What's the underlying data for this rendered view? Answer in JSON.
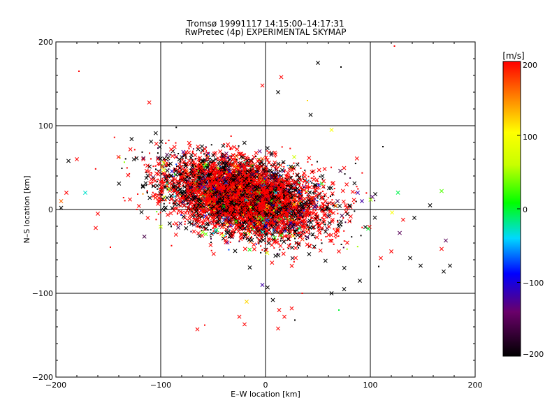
{
  "chart_data": {
    "type": "scatter",
    "title_line1": "Tromsø 19991117 14:15:00–14:17:31",
    "title_line2": "RwPretec (4p) EXPERIMENTAL SKYMAP",
    "xlabel": "E–W location [km]",
    "ylabel": "N–S location [km]",
    "xlim": [
      -200,
      200
    ],
    "ylim": [
      -200,
      200
    ],
    "xticks": [
      -200,
      -100,
      0,
      100,
      200
    ],
    "yticks": [
      -200,
      -100,
      0,
      100,
      200
    ],
    "xtick_labels": [
      "−200",
      "−100",
      "0",
      "100",
      "200"
    ],
    "ytick_labels": [
      "−200",
      "−100",
      "0",
      "100",
      "200"
    ],
    "grid": true,
    "colorbar": {
      "label": "[m/s]",
      "min": -200,
      "max": 200,
      "ticks": [
        200,
        100,
        0,
        -100,
        -200
      ],
      "tick_labels": [
        "200",
        "100",
        "0",
        "−100",
        "−200"
      ],
      "colormap": "black-purple-blue-cyan-green-yellow-red"
    },
    "markers": [
      "cross",
      "dot"
    ],
    "cluster": {
      "center_x": -20,
      "center_y": 15,
      "spread_x": 70,
      "spread_y": 30,
      "approx_points": 6000,
      "dominant_velocity": 200
    },
    "outliers": [
      {
        "x": -178,
        "y": 165,
        "v": 200,
        "m": "dot"
      },
      {
        "x": 123,
        "y": 195,
        "v": 200,
        "m": "dot"
      },
      {
        "x": 50,
        "y": 175,
        "v": -200,
        "m": "cross"
      },
      {
        "x": 72,
        "y": 170,
        "v": -200,
        "m": "dot"
      },
      {
        "x": 15,
        "y": 158,
        "v": 200,
        "m": "cross"
      },
      {
        "x": -3,
        "y": 148,
        "v": 200,
        "m": "cross"
      },
      {
        "x": 12,
        "y": 140,
        "v": -200,
        "m": "cross"
      },
      {
        "x": 43,
        "y": 113,
        "v": -200,
        "m": "cross"
      },
      {
        "x": 40,
        "y": 130,
        "v": 120,
        "m": "dot"
      },
      {
        "x": 63,
        "y": 95,
        "v": 100,
        "m": "cross"
      },
      {
        "x": 112,
        "y": 75,
        "v": -200,
        "m": "dot"
      },
      {
        "x": -188,
        "y": 58,
        "v": -200,
        "m": "cross"
      },
      {
        "x": -180,
        "y": 60,
        "v": 200,
        "m": "cross"
      },
      {
        "x": -190,
        "y": 20,
        "v": 200,
        "m": "cross"
      },
      {
        "x": -172,
        "y": 20,
        "v": -30,
        "m": "cross"
      },
      {
        "x": -195,
        "y": 2,
        "v": -200,
        "m": "cross"
      },
      {
        "x": -160,
        "y": -5,
        "v": 200,
        "m": "cross"
      },
      {
        "x": -162,
        "y": -22,
        "v": 200,
        "m": "cross"
      },
      {
        "x": -148,
        "y": -45,
        "v": 200,
        "m": "dot"
      },
      {
        "x": -195,
        "y": 10,
        "v": 160,
        "m": "cross"
      },
      {
        "x": 168,
        "y": 22,
        "v": 30,
        "m": "cross"
      },
      {
        "x": 157,
        "y": 5,
        "v": -200,
        "m": "cross"
      },
      {
        "x": 142,
        "y": -10,
        "v": -200,
        "m": "cross"
      },
      {
        "x": 128,
        "y": -28,
        "v": -150,
        "m": "cross"
      },
      {
        "x": 172,
        "y": -37,
        "v": -150,
        "m": "cross"
      },
      {
        "x": 168,
        "y": -47,
        "v": 200,
        "m": "cross"
      },
      {
        "x": 176,
        "y": -67,
        "v": -200,
        "m": "cross"
      },
      {
        "x": 170,
        "y": -74,
        "v": -200,
        "m": "cross"
      },
      {
        "x": 148,
        "y": -67,
        "v": -200,
        "m": "cross"
      },
      {
        "x": 138,
        "y": -58,
        "v": -200,
        "m": "cross"
      },
      {
        "x": 120,
        "y": -50,
        "v": 200,
        "m": "cross"
      },
      {
        "x": 110,
        "y": -58,
        "v": 200,
        "m": "cross"
      },
      {
        "x": 108,
        "y": -68,
        "v": -200,
        "m": "dot"
      },
      {
        "x": 90,
        "y": -85,
        "v": -200,
        "m": "cross"
      },
      {
        "x": 75,
        "y": -95,
        "v": -200,
        "m": "cross"
      },
      {
        "x": 88,
        "y": 20,
        "v": -120,
        "m": "cross"
      },
      {
        "x": 92,
        "y": 10,
        "v": -120,
        "m": "cross"
      },
      {
        "x": 98,
        "y": -23,
        "v": 0,
        "m": "cross"
      },
      {
        "x": 7,
        "y": -108,
        "v": -200,
        "m": "cross"
      },
      {
        "x": 13,
        "y": -120,
        "v": 200,
        "m": "cross"
      },
      {
        "x": 18,
        "y": -128,
        "v": 200,
        "m": "cross"
      },
      {
        "x": 12,
        "y": -142,
        "v": 200,
        "m": "cross"
      },
      {
        "x": 25,
        "y": -118,
        "v": 200,
        "m": "cross"
      },
      {
        "x": 28,
        "y": -132,
        "v": -200,
        "m": "dot"
      },
      {
        "x": -18,
        "y": -110,
        "v": 120,
        "m": "cross"
      },
      {
        "x": -25,
        "y": -128,
        "v": 200,
        "m": "cross"
      },
      {
        "x": -20,
        "y": -137,
        "v": 200,
        "m": "cross"
      },
      {
        "x": -65,
        "y": -143,
        "v": 200,
        "m": "cross"
      },
      {
        "x": -58,
        "y": -138,
        "v": 200,
        "m": "dot"
      },
      {
        "x": 70,
        "y": -120,
        "v": 0,
        "m": "dot"
      },
      {
        "x": 63,
        "y": -100,
        "v": -200,
        "m": "cross"
      },
      {
        "x": -3,
        "y": -90,
        "v": -120,
        "m": "cross"
      },
      {
        "x": 2,
        "y": -93,
        "v": -200,
        "m": "cross"
      },
      {
        "x": 35,
        "y": -100,
        "v": 200,
        "m": "dot"
      }
    ]
  }
}
